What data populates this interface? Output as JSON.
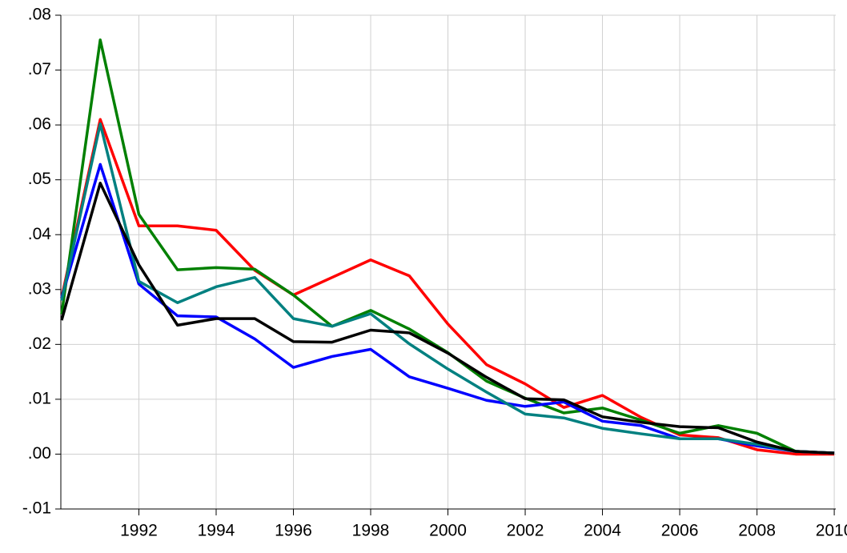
{
  "chart_data": {
    "type": "line",
    "x": [
      1990,
      1991,
      1992,
      1993,
      1994,
      1995,
      1996,
      1997,
      1998,
      1999,
      2000,
      2001,
      2002,
      2003,
      2004,
      2005,
      2006,
      2007,
      2008,
      2009,
      2010
    ],
    "series": [
      {
        "color": "#ff0000",
        "values": [
          0.0285,
          0.061,
          0.0416,
          0.0416,
          0.0408,
          0.0335,
          0.029,
          0.0322,
          0.0354,
          0.0325,
          0.0237,
          0.0163,
          0.0128,
          0.0085,
          0.0107,
          0.0067,
          0.0035,
          0.003,
          0.0008,
          0.0,
          0.0
        ]
      },
      {
        "color": "#008000",
        "values": [
          0.0255,
          0.0755,
          0.0437,
          0.0336,
          0.034,
          0.0337,
          0.029,
          0.0233,
          0.0262,
          0.0228,
          0.0185,
          0.0133,
          0.0102,
          0.0075,
          0.0084,
          0.0062,
          0.0038,
          0.0052,
          0.0038,
          0.0005,
          0.0002
        ]
      },
      {
        "color": "#0000ff",
        "values": [
          0.0285,
          0.0528,
          0.031,
          0.0252,
          0.025,
          0.021,
          0.0158,
          0.0178,
          0.0191,
          0.0141,
          0.012,
          0.0098,
          0.0087,
          0.0095,
          0.006,
          0.0052,
          0.0028,
          0.0028,
          0.0015,
          0.0005,
          0.0002
        ]
      },
      {
        "color": "#008080",
        "values": [
          0.028,
          0.0602,
          0.0315,
          0.0276,
          0.0305,
          0.0322,
          0.0247,
          0.0233,
          0.0256,
          0.0201,
          0.0155,
          0.0113,
          0.0073,
          0.0066,
          0.0047,
          0.0037,
          0.0028,
          0.0028,
          0.0018,
          0.0005,
          0.0002
        ]
      },
      {
        "color": "#000000",
        "values": [
          0.0244,
          0.0494,
          0.0345,
          0.0235,
          0.0247,
          0.0247,
          0.0205,
          0.0204,
          0.0226,
          0.0221,
          0.0184,
          0.014,
          0.0101,
          0.0099,
          0.0068,
          0.0058,
          0.005,
          0.0048,
          0.0022,
          0.0005,
          0.0002
        ]
      }
    ],
    "xlim": [
      1989.98,
      2010.04
    ],
    "xticks": [
      1992,
      1994,
      1996,
      1998,
      2000,
      2002,
      2004,
      2006,
      2008,
      2010
    ],
    "ylim": [
      -0.01,
      0.08
    ],
    "yticks": [
      {
        "value": -0.01,
        "label": "-.01"
      },
      {
        "value": 0.0,
        "label": ".00"
      },
      {
        "value": 0.01,
        "label": ".01"
      },
      {
        "value": 0.02,
        "label": ".02"
      },
      {
        "value": 0.03,
        "label": ".03"
      },
      {
        "value": 0.04,
        "label": ".04"
      },
      {
        "value": 0.05,
        "label": ".05"
      },
      {
        "value": 0.06,
        "label": ".06"
      },
      {
        "value": 0.07,
        "label": ".07"
      },
      {
        "value": 0.08,
        "label": ".08"
      }
    ],
    "grid": true
  }
}
